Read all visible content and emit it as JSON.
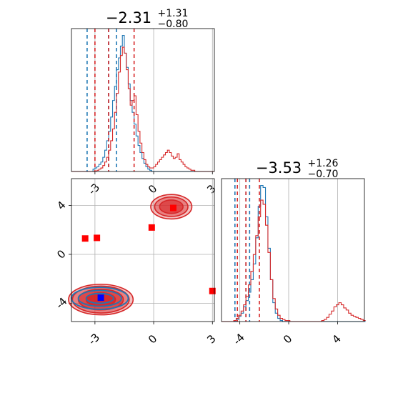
{
  "chart_data": [
    {
      "type": "histogram",
      "panel": "top-left",
      "title": {
        "main": "−2.31",
        "sup": "+1.31",
        "sub": "−0.80"
      },
      "xlim": [
        -4.2,
        3.1
      ],
      "grid": true,
      "x_ticks": [
        -3,
        0,
        3
      ],
      "series": [
        {
          "color": "#1f77b4",
          "quantiles": [
            -3.4,
            -2.3,
            -1.9
          ],
          "bins": {
            "start": -4.2,
            "width": 0.1,
            "counts": [
              0,
              0,
              0,
              0,
              0,
              0,
              0,
              0,
              0,
              0,
              0,
              2,
              3,
              4,
              6,
              8,
              12,
              18,
              26,
              34,
              46,
              60,
              72,
              86,
              96,
              106,
              115,
              100,
              88,
              74,
              60,
              50,
              40,
              30,
              22,
              16,
              11,
              7,
              4,
              2,
              1,
              0,
              0,
              0,
              0,
              0,
              0,
              0,
              0,
              0,
              0,
              0,
              0,
              0,
              0,
              0,
              0,
              0,
              0,
              0,
              0,
              0,
              0,
              0,
              0,
              0,
              0,
              0,
              0,
              0,
              0,
              0,
              0
            ]
          }
        },
        {
          "color": "#d62728",
          "quantiles": [
            -3.0,
            -2.3,
            -1.0
          ],
          "bins": {
            "start": -4.2,
            "width": 0.1,
            "counts": [
              0,
              0,
              0,
              0,
              0,
              0,
              0,
              0,
              0,
              0,
              0,
              0,
              0,
              1,
              2,
              3,
              5,
              8,
              12,
              18,
              26,
              36,
              50,
              66,
              84,
              98,
              105,
              100,
              86,
              70,
              56,
              60,
              64,
              48,
              34,
              24,
              16,
              10,
              6,
              4,
              3,
              3,
              4,
              6,
              8,
              10,
              12,
              14,
              16,
              18,
              16,
              13,
              11,
              12,
              15,
              10,
              8,
              6,
              4,
              3,
              2,
              1,
              1,
              0,
              0,
              0,
              0,
              0,
              0,
              0,
              0,
              0,
              0
            ]
          }
        }
      ]
    },
    {
      "type": "histogram",
      "panel": "bottom-right",
      "title": {
        "main": "−3.53",
        "sup": "+1.26",
        "sub": "−0.70"
      },
      "xlim": [
        -5.5,
        6.2
      ],
      "grid": true,
      "x_ticks": [
        -4,
        0,
        4
      ],
      "series": [
        {
          "color": "#1f77b4",
          "quantiles": [
            -4.4,
            -3.5,
            -3.2
          ],
          "bins": {
            "start": -5.5,
            "width": 0.2,
            "counts": [
              0,
              0,
              0,
              0,
              0,
              0,
              2,
              5,
              8,
              14,
              20,
              28,
              40,
              55,
              80,
              110,
              130,
              128,
              100,
              70,
              40,
              18,
              8,
              3,
              1,
              0,
              0,
              0,
              0,
              0,
              0,
              0,
              0,
              0,
              0,
              0,
              0,
              0,
              0,
              0,
              0,
              0,
              0,
              0,
              0,
              0,
              0,
              0,
              0,
              0,
              0,
              0,
              0,
              0,
              0,
              0,
              0,
              0,
              0
            ]
          }
        },
        {
          "color": "#d62728",
          "quantiles": [
            -4.2,
            -3.5,
            -2.4
          ],
          "bins": {
            "start": -5.5,
            "width": 0.2,
            "counts": [
              0,
              0,
              0,
              0,
              0,
              1,
              3,
              6,
              10,
              16,
              24,
              35,
              48,
              64,
              82,
              100,
              116,
              112,
              92,
              66,
              40,
              22,
              12,
              6,
              3,
              2,
              1,
              1,
              0,
              0,
              0,
              0,
              0,
              0,
              0,
              0,
              0,
              0,
              0,
              0,
              0,
              1,
              2,
              4,
              7,
              10,
              14,
              16,
              18,
              16,
              13,
              11,
              8,
              6,
              5,
              4,
              3,
              2,
              1
            ]
          }
        }
      ]
    },
    {
      "type": "contour",
      "panel": "bottom-left",
      "xlim": [
        -4.2,
        3.1
      ],
      "ylim": [
        -5.5,
        6.2
      ],
      "grid": true,
      "x_ticks": [
        -3,
        0,
        3
      ],
      "y_ticks": [
        -4,
        0,
        4
      ],
      "red_contours": [
        {
          "cx": -2.7,
          "cy": -3.7,
          "rx": [
            1.65,
            1.45,
            1.15,
            0.75
          ],
          "ry": [
            1.25,
            1.1,
            0.85,
            0.55
          ]
        },
        {
          "cx": 0.9,
          "cy": 3.9,
          "rx": [
            1.05,
            0.85,
            0.6
          ],
          "ry": [
            1.0,
            0.8,
            0.55
          ]
        }
      ],
      "blue_contours": [
        {
          "cx": -2.75,
          "cy": -3.6,
          "rx": [
            1.45,
            1.1,
            0.7
          ],
          "ry": [
            0.9,
            0.65,
            0.4
          ]
        }
      ],
      "red_markers": [
        [
          -3.5,
          1.3
        ],
        [
          -2.9,
          1.35
        ],
        [
          -0.1,
          2.2
        ],
        [
          1.0,
          3.8
        ],
        [
          3.0,
          -3.0
        ]
      ],
      "blue_markers": [
        [
          -2.7,
          -3.55
        ]
      ]
    }
  ]
}
